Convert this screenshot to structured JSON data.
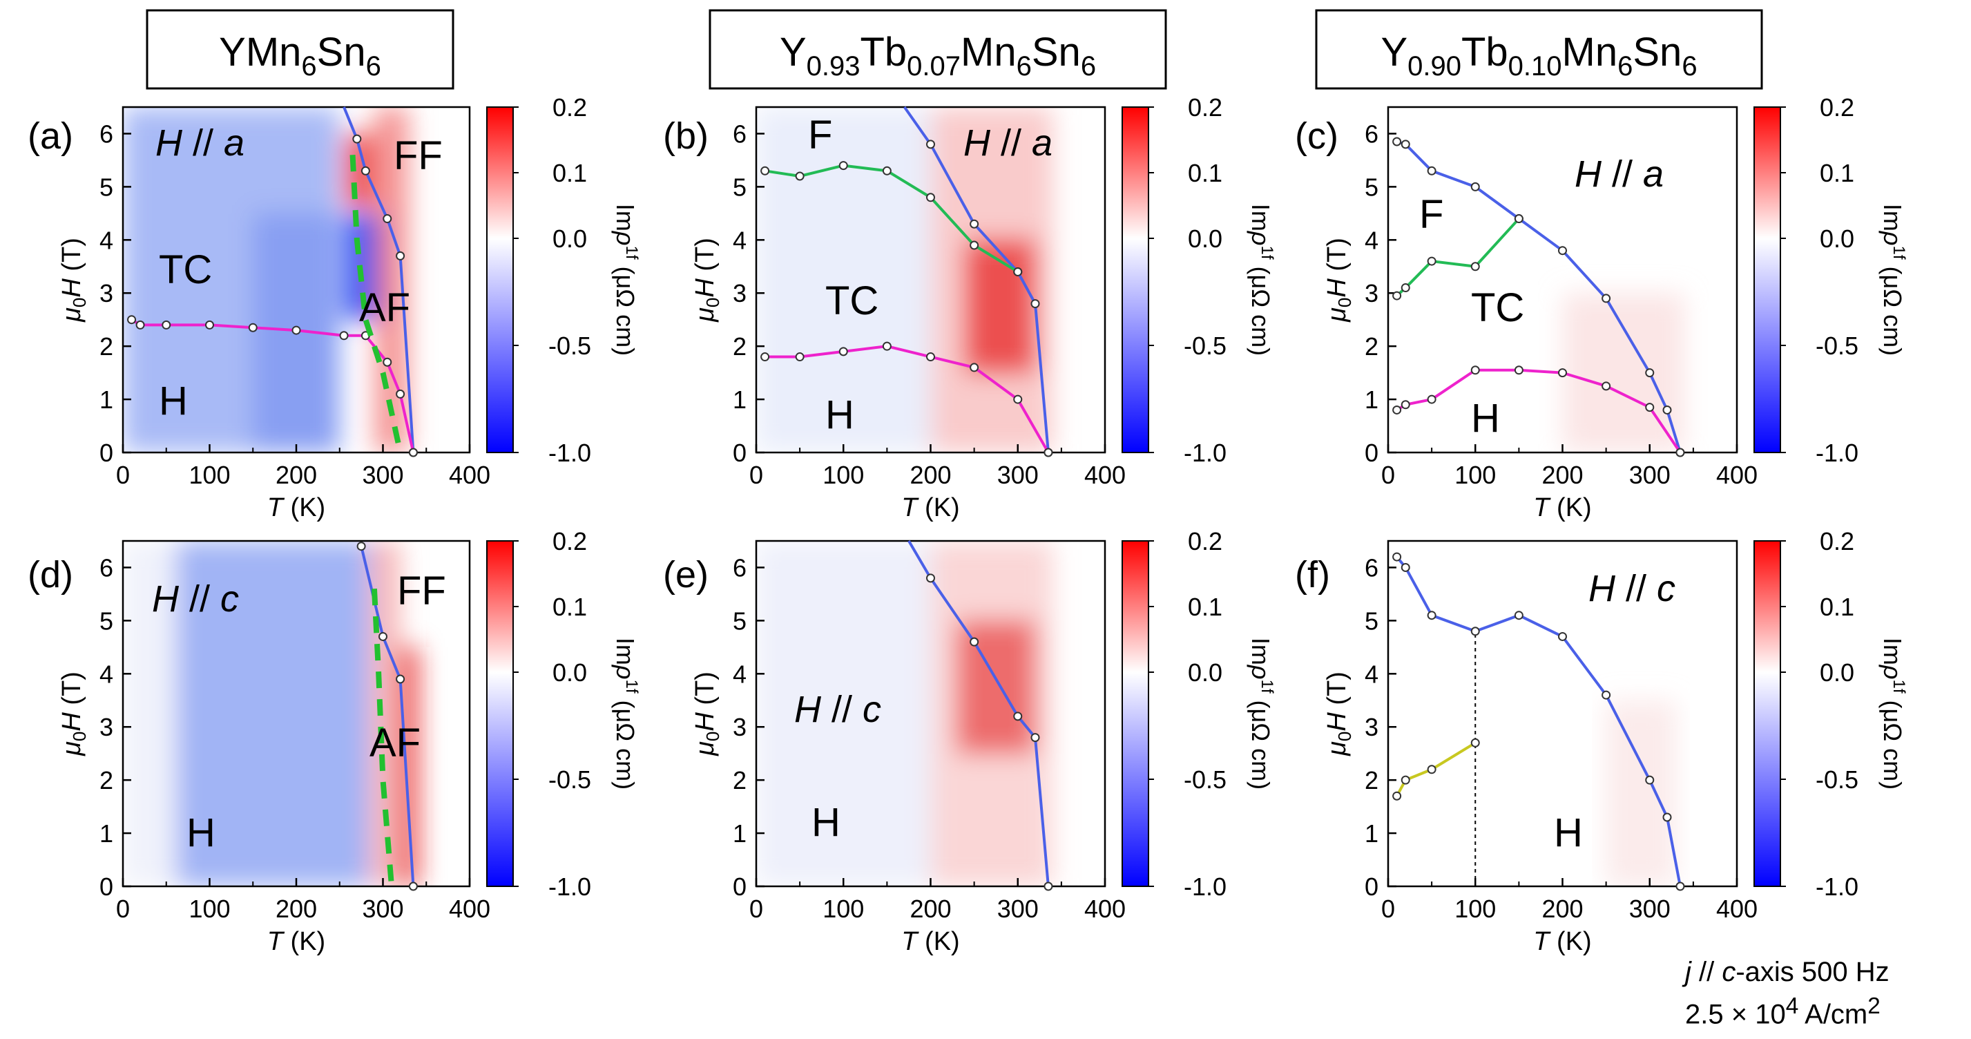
{
  "figure": {
    "columns": [
      {
        "title_parts": [
          {
            "t": "YMn",
            "sub": false
          },
          {
            "t": "6",
            "sub": true
          },
          {
            "t": "Sn",
            "sub": false
          },
          {
            "t": "6",
            "sub": true
          }
        ]
      },
      {
        "title_parts": [
          {
            "t": "Y",
            "sub": false
          },
          {
            "t": "0.93",
            "sub": true
          },
          {
            "t": "Tb",
            "sub": false
          },
          {
            "t": "0.07",
            "sub": true
          },
          {
            "t": "Mn",
            "sub": false
          },
          {
            "t": "6",
            "sub": true
          },
          {
            "t": "Sn",
            "sub": false
          },
          {
            "t": "6",
            "sub": true
          }
        ]
      },
      {
        "title_parts": [
          {
            "t": "Y",
            "sub": false
          },
          {
            "t": "0.90",
            "sub": true
          },
          {
            "t": "Tb",
            "sub": false
          },
          {
            "t": "0.10",
            "sub": true
          },
          {
            "t": "Mn",
            "sub": false
          },
          {
            "t": "6",
            "sub": true
          },
          {
            "t": "Sn",
            "sub": false
          },
          {
            "t": "6",
            "sub": true
          }
        ]
      }
    ],
    "footnote": {
      "line1_parts": [
        {
          "t": "j",
          "i": true
        },
        {
          "t": " // ",
          "i": false
        },
        {
          "t": "c",
          "i": true
        },
        {
          "t": "-axis 500 Hz",
          "i": false
        }
      ],
      "line2_parts": [
        {
          "t": "2.5 × 10",
          "i": false
        },
        {
          "t": "4",
          "sup": true
        },
        {
          "t": " A/cm",
          "i": false
        },
        {
          "t": "2",
          "sup": true
        }
      ]
    },
    "colors": {
      "blue_line": "#4a60e8",
      "pink_line": "#ee22cc",
      "green_line": "#22bb55",
      "yellow_line": "#c8c820",
      "dashed_green": "#22c030",
      "red": "#ff0000",
      "blue": "#0000ff"
    }
  },
  "chart_data": [
    {
      "panel": "(a)",
      "type": "heatmap",
      "field_label": "H // a",
      "xlabel": "T (K)",
      "ylabel": "μ0H (T)",
      "xlim": [
        0,
        400
      ],
      "ylim": [
        0,
        6.5
      ],
      "xticks": [
        0,
        100,
        200,
        300,
        400
      ],
      "yticks": [
        0,
        1,
        2,
        3,
        4,
        5,
        6
      ],
      "colorbar": {
        "label": "Im ρ1f (μΩ cm)",
        "ticks": [
          0.2,
          0.1,
          0.0,
          -0.5,
          -1.0
        ]
      },
      "phase_labels": [
        "H",
        "TC",
        "AF",
        "FF"
      ],
      "series": [
        {
          "name": "blue",
          "color": "#4a60e8",
          "points": [
            [
              255,
              6.5
            ],
            [
              270,
              5.9
            ],
            [
              280,
              5.3
            ],
            [
              305,
              4.4
            ],
            [
              320,
              3.7
            ],
            [
              335,
              0
            ]
          ]
        },
        {
          "name": "pink",
          "color": "#ee22cc",
          "points": [
            [
              10,
              2.5
            ],
            [
              20,
              2.4
            ],
            [
              50,
              2.4
            ],
            [
              100,
              2.4
            ],
            [
              150,
              2.35
            ],
            [
              200,
              2.3
            ],
            [
              255,
              2.2
            ],
            [
              280,
              2.2
            ],
            [
              305,
              1.7
            ],
            [
              320,
              1.1
            ],
            [
              335,
              0
            ]
          ]
        },
        {
          "name": "green-dashed",
          "color": "#22c030",
          "dashed": true,
          "points": [
            [
              265,
              5.6
            ],
            [
              270,
              4.0
            ],
            [
              280,
              2.5
            ],
            [
              300,
              1.5
            ],
            [
              320,
              0
            ]
          ]
        }
      ],
      "zones": [
        {
          "x0": 0,
          "x1": 250,
          "ymin": 0,
          "ymax": 6.5,
          "color": "#6e8cf0",
          "opacity": 0.6
        },
        {
          "x0": 150,
          "x1": 250,
          "ymin": 0,
          "ymax": 4.5,
          "color": "#5a78ee",
          "opacity": 0.4
        },
        {
          "x0": 255,
          "x1": 300,
          "ymin": 2.5,
          "ymax": 4.5,
          "color": "#2a4af2",
          "opacity": 0.9
        },
        {
          "x0": 255,
          "x1": 290,
          "ymin": 4.6,
          "ymax": 6.0,
          "color": "#e82828",
          "opacity": 0.8
        },
        {
          "x0": 290,
          "x1": 330,
          "ymin": 0,
          "ymax": 6.5,
          "color": "#f06060",
          "opacity": 0.65
        }
      ]
    },
    {
      "panel": "(b)",
      "type": "heatmap",
      "field_label": "H // a",
      "xlabel": "T (K)",
      "ylabel": "μ0H (T)",
      "xlim": [
        0,
        400
      ],
      "ylim": [
        0,
        6.5
      ],
      "xticks": [
        0,
        100,
        200,
        300,
        400
      ],
      "yticks": [
        0,
        1,
        2,
        3,
        4,
        5,
        6
      ],
      "colorbar": {
        "label": "Im ρ1f (μΩ cm)",
        "ticks": [
          0.2,
          0.1,
          0.0,
          -0.5,
          -1.0
        ]
      },
      "phase_labels": [
        "F",
        "TC",
        "H"
      ],
      "series": [
        {
          "name": "blue",
          "color": "#4a60e8",
          "points": [
            [
              170,
              6.5
            ],
            [
              200,
              5.8
            ],
            [
              250,
              4.3
            ],
            [
              300,
              3.4
            ],
            [
              320,
              2.8
            ],
            [
              335,
              0
            ]
          ]
        },
        {
          "name": "green",
          "color": "#22bb55",
          "points": [
            [
              10,
              5.3
            ],
            [
              50,
              5.2
            ],
            [
              100,
              5.4
            ],
            [
              150,
              5.3
            ],
            [
              200,
              4.8
            ],
            [
              250,
              3.9
            ],
            [
              300,
              3.4
            ]
          ]
        },
        {
          "name": "pink",
          "color": "#ee22cc",
          "points": [
            [
              10,
              1.8
            ],
            [
              50,
              1.8
            ],
            [
              100,
              1.9
            ],
            [
              150,
              2.0
            ],
            [
              200,
              1.8
            ],
            [
              250,
              1.6
            ],
            [
              300,
              1.0
            ],
            [
              335,
              0
            ]
          ]
        }
      ],
      "zones": [
        {
          "x0": 0,
          "x1": 200,
          "ymin": 0,
          "ymax": 6.5,
          "color": "#dce2f8",
          "opacity": 0.6
        },
        {
          "x0": 200,
          "x1": 340,
          "ymin": 0,
          "ymax": 6.5,
          "color": "#f4a0a0",
          "opacity": 0.55
        },
        {
          "x0": 240,
          "x1": 320,
          "ymin": 1.5,
          "ymax": 4.0,
          "color": "#e83030",
          "opacity": 0.8
        }
      ]
    },
    {
      "panel": "(c)",
      "type": "heatmap",
      "field_label": "H // a",
      "xlabel": "T (K)",
      "ylabel": "μ0H (T)",
      "xlim": [
        0,
        400
      ],
      "ylim": [
        0,
        6.5
      ],
      "xticks": [
        0,
        100,
        200,
        300,
        400
      ],
      "yticks": [
        0,
        1,
        2,
        3,
        4,
        5,
        6
      ],
      "colorbar": {
        "label": "Im ρ1f (μΩ cm)",
        "ticks": [
          0.2,
          0.1,
          0.0,
          -0.5,
          -1.0
        ]
      },
      "phase_labels": [
        "F",
        "TC",
        "H"
      ],
      "series": [
        {
          "name": "blue",
          "color": "#4a60e8",
          "points": [
            [
              10,
              5.85
            ],
            [
              20,
              5.8
            ],
            [
              50,
              5.3
            ],
            [
              100,
              5.0
            ],
            [
              150,
              4.4
            ],
            [
              200,
              3.8
            ],
            [
              250,
              2.9
            ],
            [
              300,
              1.5
            ],
            [
              320,
              0.8
            ],
            [
              335,
              0
            ]
          ]
        },
        {
          "name": "green",
          "color": "#22bb55",
          "points": [
            [
              10,
              2.95
            ],
            [
              20,
              3.1
            ],
            [
              50,
              3.6
            ],
            [
              100,
              3.5
            ],
            [
              150,
              4.4
            ]
          ]
        },
        {
          "name": "pink",
          "color": "#ee22cc",
          "points": [
            [
              10,
              0.8
            ],
            [
              20,
              0.9
            ],
            [
              50,
              1.0
            ],
            [
              100,
              1.55
            ],
            [
              150,
              1.55
            ],
            [
              200,
              1.5
            ],
            [
              250,
              1.25
            ],
            [
              300,
              0.85
            ],
            [
              335,
              0
            ]
          ]
        }
      ],
      "zones": [
        {
          "x0": 200,
          "x1": 340,
          "ymin": 0,
          "ymax": 3.0,
          "color": "#f8d6d6",
          "opacity": 0.6
        }
      ]
    },
    {
      "panel": "(d)",
      "type": "heatmap",
      "field_label": "H // c",
      "xlabel": "T (K)",
      "ylabel": "μ0H (T)",
      "xlim": [
        0,
        400
      ],
      "ylim": [
        0,
        6.5
      ],
      "xticks": [
        0,
        100,
        200,
        300,
        400
      ],
      "yticks": [
        0,
        1,
        2,
        3,
        4,
        5,
        6
      ],
      "colorbar": {
        "label": "Im ρ1f (μΩ cm)",
        "ticks": [
          0.2,
          0.1,
          0.0,
          -0.5,
          -1.0
        ]
      },
      "phase_labels": [
        "H",
        "AF",
        "FF"
      ],
      "series": [
        {
          "name": "blue",
          "color": "#4a60e8",
          "points": [
            [
              275,
              6.4
            ],
            [
              300,
              4.7
            ],
            [
              320,
              3.9
            ],
            [
              335,
              0
            ]
          ]
        },
        {
          "name": "green-dashed",
          "color": "#22c030",
          "dashed": true,
          "points": [
            [
              290,
              5.6
            ],
            [
              295,
              4.0
            ],
            [
              300,
              2.0
            ],
            [
              310,
              0
            ]
          ]
        }
      ],
      "zones": [
        {
          "x0": 0,
          "x1": 60,
          "ymin": 0,
          "ymax": 6.5,
          "color": "#e6eaf8",
          "opacity": 0.6
        },
        {
          "x0": 60,
          "x1": 285,
          "ymin": 0,
          "ymax": 6.5,
          "color": "#6e8cf0",
          "opacity": 0.65
        },
        {
          "x0": 285,
          "x1": 320,
          "ymin": 0,
          "ymax": 6.5,
          "color": "#f28a8a",
          "opacity": 0.6
        },
        {
          "x0": 320,
          "x1": 340,
          "ymin": 0,
          "ymax": 4.5,
          "color": "#e82020",
          "opacity": 0.9
        }
      ]
    },
    {
      "panel": "(e)",
      "type": "heatmap",
      "field_label": "H // c",
      "xlabel": "T (K)",
      "ylabel": "μ0H (T)",
      "xlim": [
        0,
        400
      ],
      "ylim": [
        0,
        6.5
      ],
      "xticks": [
        0,
        100,
        200,
        300,
        400
      ],
      "yticks": [
        0,
        1,
        2,
        3,
        4,
        5,
        6
      ],
      "colorbar": {
        "label": "Im ρ1f (μΩ cm)",
        "ticks": [
          0.2,
          0.1,
          0.0,
          -0.5,
          -1.0
        ]
      },
      "phase_labels": [
        "H"
      ],
      "series": [
        {
          "name": "blue",
          "color": "#4a60e8",
          "points": [
            [
              175,
              6.5
            ],
            [
              200,
              5.8
            ],
            [
              250,
              4.6
            ],
            [
              300,
              3.2
            ],
            [
              320,
              2.8
            ],
            [
              335,
              0
            ]
          ]
        }
      ],
      "zones": [
        {
          "x0": 0,
          "x1": 200,
          "ymin": 0,
          "ymax": 6.5,
          "color": "#e2e6f8",
          "opacity": 0.6
        },
        {
          "x0": 200,
          "x1": 340,
          "ymin": 0,
          "ymax": 6.5,
          "color": "#f6b4b4",
          "opacity": 0.55
        },
        {
          "x0": 230,
          "x1": 320,
          "ymin": 2.5,
          "ymax": 5.0,
          "color": "#e84040",
          "opacity": 0.7
        }
      ]
    },
    {
      "panel": "(f)",
      "type": "heatmap",
      "field_label": "H // c",
      "xlabel": "T (K)",
      "ylabel": "μ0H (T)",
      "xlim": [
        0,
        400
      ],
      "ylim": [
        0,
        6.5
      ],
      "xticks": [
        0,
        100,
        200,
        300,
        400
      ],
      "yticks": [
        0,
        1,
        2,
        3,
        4,
        5,
        6
      ],
      "colorbar": {
        "label": "Im ρ1f (μΩ cm)",
        "ticks": [
          0.2,
          0.1,
          0.0,
          -0.5,
          -1.0
        ]
      },
      "phase_labels": [
        "H"
      ],
      "series": [
        {
          "name": "blue",
          "color": "#4a60e8",
          "points": [
            [
              10,
              6.2
            ],
            [
              20,
              6.0
            ],
            [
              50,
              5.1
            ],
            [
              100,
              4.8
            ],
            [
              150,
              5.1
            ],
            [
              200,
              4.7
            ],
            [
              250,
              3.6
            ],
            [
              300,
              2.0
            ],
            [
              320,
              1.3
            ],
            [
              335,
              0
            ]
          ]
        },
        {
          "name": "yellow",
          "color": "#c8c820",
          "points": [
            [
              10,
              1.7
            ],
            [
              20,
              2.0
            ],
            [
              50,
              2.2
            ],
            [
              100,
              2.7
            ]
          ]
        }
      ],
      "vline": {
        "x": 100,
        "y0": 0,
        "y1": 4.8
      },
      "zones": [
        {
          "x0": 250,
          "x1": 330,
          "ymin": 0,
          "ymax": 3.5,
          "color": "#f8dede",
          "opacity": 0.6
        }
      ]
    }
  ]
}
